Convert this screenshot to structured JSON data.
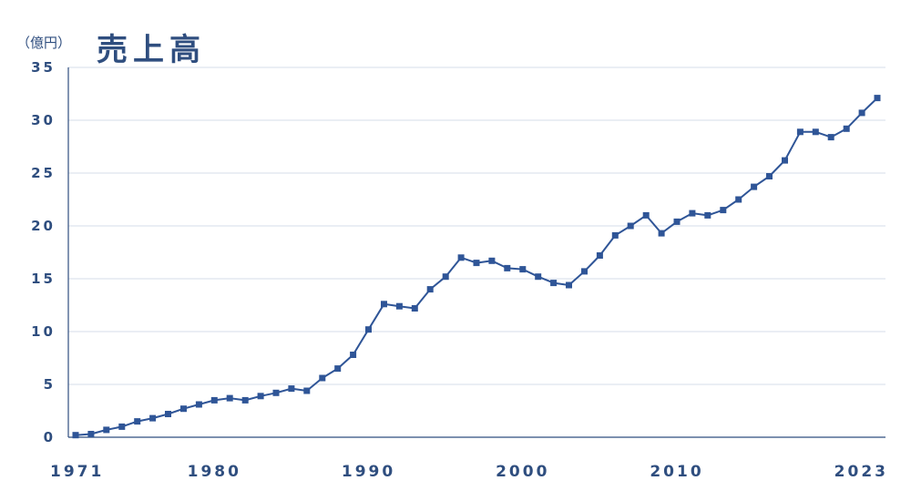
{
  "unit_label": "（億円）",
  "title": "売上高",
  "colors": {
    "text": "#2f4e7f",
    "line": "#2f5597",
    "marker": "#2f5597",
    "axis": "#2f4e7f",
    "grid": "#d6dce8"
  },
  "chart_data": {
    "type": "line",
    "title": "売上高",
    "ylabel": "（億円）",
    "xlabel": "",
    "ylim": [
      0,
      35
    ],
    "xlim": [
      1971,
      2023
    ],
    "y_ticks": [
      "0",
      "5",
      "10",
      "15",
      "20",
      "25",
      "30",
      "35"
    ],
    "x_ticks": [
      "1971",
      "1980",
      "1990",
      "2000",
      "2010",
      "2023"
    ],
    "x_tick_years": [
      1971,
      1980,
      1990,
      2000,
      2010,
      2023
    ],
    "grid": "horizontal",
    "marker": "square",
    "series": [
      {
        "x": [
          1971,
          1972,
          1973,
          1974,
          1975,
          1976,
          1977,
          1978,
          1979,
          1980,
          1981,
          1982,
          1983,
          1984,
          1985,
          1986,
          1987,
          1988,
          1989,
          1990,
          1991,
          1992,
          1993,
          1994,
          1995,
          1996,
          1997,
          1998,
          1999,
          2000,
          2001,
          2002,
          2003,
          2004,
          2005,
          2006,
          2007,
          2008,
          2009,
          2010,
          2011,
          2012,
          2013,
          2014,
          2015,
          2016,
          2017,
          2018,
          2019,
          2020,
          2021,
          2022,
          2023
        ],
        "values": [
          0.2,
          0.3,
          0.7,
          1.0,
          1.5,
          1.8,
          2.2,
          2.7,
          3.1,
          3.5,
          3.7,
          3.5,
          3.9,
          4.2,
          4.6,
          4.4,
          5.6,
          6.5,
          7.8,
          10.2,
          12.6,
          12.4,
          12.2,
          14.0,
          15.2,
          17.0,
          16.5,
          16.7,
          16.0,
          15.9,
          15.2,
          14.6,
          14.4,
          15.7,
          17.2,
          19.1,
          20.0,
          21.0,
          19.3,
          20.4,
          21.2,
          21.0,
          21.5,
          22.5,
          23.7,
          24.7,
          26.2,
          28.9,
          28.9,
          28.4,
          29.2,
          30.7,
          32.1
        ]
      }
    ]
  }
}
